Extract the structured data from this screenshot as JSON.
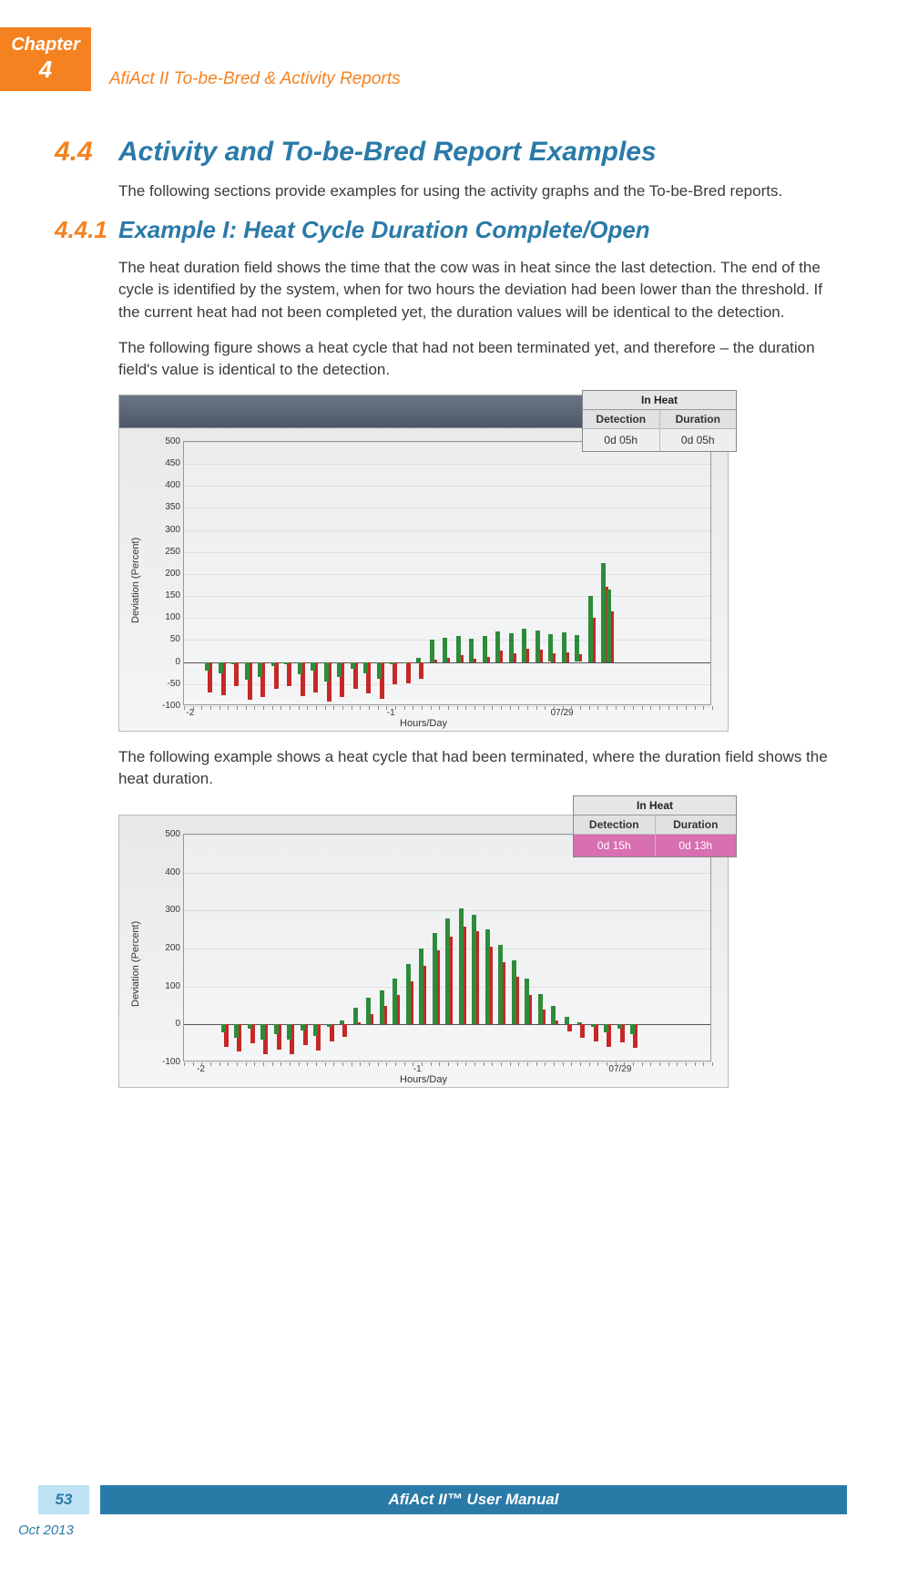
{
  "chapter": {
    "label": "Chapter",
    "number": "4"
  },
  "header_title": "AfiAct II To-be-Bred & Activity Reports",
  "section": {
    "num": "4.4",
    "title": "Activity and To-be-Bred Report Examples",
    "intro": "The following sections provide examples for using the activity graphs and the To-be-Bred reports."
  },
  "subsection": {
    "num": "4.4.1",
    "title": "Example I: Heat Cycle Duration Complete/Open",
    "p1": "The heat duration field shows the time that the cow was in heat since the last detection. The end of the cycle is identified by the system, when for two hours the deviation had been lower than the threshold. If the current heat had not been completed yet, the duration values will be identical to the detection.",
    "p2": "The following figure shows a heat cycle that had not been terminated yet, and therefore – the duration field's value is identical to the detection.",
    "p3": "The following example shows a heat cycle that had been terminated, where the duration field shows the heat duration."
  },
  "chart_common": {
    "y_label": "Deviation  (Percent)",
    "x_label": "Hours/Day",
    "bar_green": "#2e8b3a",
    "bar_red": "#c62828",
    "grid_color": "#c0c0c0",
    "bg_top": "#e8e9eb",
    "bg_bottom": "#f3f4f5"
  },
  "chart1": {
    "ylim": [
      -100,
      500
    ],
    "yticks": [
      -100,
      -50,
      0,
      50,
      100,
      150,
      200,
      250,
      300,
      350,
      400,
      450,
      500
    ],
    "xticks": [
      {
        "pos": 0.03,
        "label": "-2"
      },
      {
        "pos": 0.41,
        "label": "-1"
      },
      {
        "pos": 0.72,
        "label": "07/29"
      }
    ],
    "bars": [
      {
        "x": 0.04,
        "g": -20,
        "r": -70
      },
      {
        "x": 0.065,
        "g": -25,
        "r": -75
      },
      {
        "x": 0.09,
        "g": -5,
        "r": -55
      },
      {
        "x": 0.115,
        "g": -40,
        "r": -85
      },
      {
        "x": 0.14,
        "g": -35,
        "r": -80
      },
      {
        "x": 0.165,
        "g": -10,
        "r": -60
      },
      {
        "x": 0.19,
        "g": -5,
        "r": -55
      },
      {
        "x": 0.215,
        "g": -28,
        "r": -78
      },
      {
        "x": 0.24,
        "g": -20,
        "r": -70
      },
      {
        "x": 0.265,
        "g": -45,
        "r": -90
      },
      {
        "x": 0.29,
        "g": -35,
        "r": -80
      },
      {
        "x": 0.315,
        "g": -15,
        "r": -62
      },
      {
        "x": 0.34,
        "g": -25,
        "r": -72
      },
      {
        "x": 0.365,
        "g": -38,
        "r": -83
      },
      {
        "x": 0.39,
        "g": -5,
        "r": -50
      },
      {
        "x": 0.415,
        "g": 0,
        "r": -48
      },
      {
        "x": 0.44,
        "g": 10,
        "r": -38
      },
      {
        "x": 0.465,
        "g": 50,
        "r": 5
      },
      {
        "x": 0.49,
        "g": 55,
        "r": 10
      },
      {
        "x": 0.515,
        "g": 60,
        "r": 15
      },
      {
        "x": 0.54,
        "g": 52,
        "r": 8
      },
      {
        "x": 0.565,
        "g": 58,
        "r": 12
      },
      {
        "x": 0.59,
        "g": 70,
        "r": 25
      },
      {
        "x": 0.615,
        "g": 65,
        "r": 20
      },
      {
        "x": 0.64,
        "g": 75,
        "r": 30
      },
      {
        "x": 0.665,
        "g": 72,
        "r": 28
      },
      {
        "x": 0.69,
        "g": 64,
        "r": 20
      },
      {
        "x": 0.715,
        "g": 67,
        "r": 22
      },
      {
        "x": 0.74,
        "g": 62,
        "r": 18
      },
      {
        "x": 0.765,
        "g": 150,
        "r": 100
      },
      {
        "x": 0.79,
        "g": 225,
        "r": 170
      },
      {
        "x": 0.8,
        "g": 165,
        "r": 115
      }
    ],
    "inheat": {
      "title": "In Heat",
      "cols": [
        "Detection",
        "Duration"
      ],
      "vals": [
        "0d 05h",
        "0d 05h"
      ],
      "highlight": false
    }
  },
  "chart2": {
    "ylim": [
      -100,
      500
    ],
    "yticks": [
      -100,
      0,
      100,
      200,
      300,
      400,
      500
    ],
    "xticks": [
      {
        "pos": 0.05,
        "label": "-2"
      },
      {
        "pos": 0.46,
        "label": "-1"
      },
      {
        "pos": 0.83,
        "label": "07/29"
      }
    ],
    "bars": [
      {
        "x": 0.07,
        "g": -20,
        "r": -60
      },
      {
        "x": 0.095,
        "g": -35,
        "r": -72
      },
      {
        "x": 0.12,
        "g": -10,
        "r": -50
      },
      {
        "x": 0.145,
        "g": -40,
        "r": -78
      },
      {
        "x": 0.17,
        "g": -25,
        "r": -65
      },
      {
        "x": 0.195,
        "g": -40,
        "r": -78
      },
      {
        "x": 0.22,
        "g": -15,
        "r": -55
      },
      {
        "x": 0.245,
        "g": -30,
        "r": -68
      },
      {
        "x": 0.27,
        "g": -5,
        "r": -45
      },
      {
        "x": 0.295,
        "g": 10,
        "r": -32
      },
      {
        "x": 0.32,
        "g": 45,
        "r": 5
      },
      {
        "x": 0.345,
        "g": 70,
        "r": 28
      },
      {
        "x": 0.37,
        "g": 90,
        "r": 48
      },
      {
        "x": 0.395,
        "g": 120,
        "r": 78
      },
      {
        "x": 0.42,
        "g": 160,
        "r": 115
      },
      {
        "x": 0.445,
        "g": 200,
        "r": 155
      },
      {
        "x": 0.47,
        "g": 240,
        "r": 195
      },
      {
        "x": 0.495,
        "g": 280,
        "r": 232
      },
      {
        "x": 0.52,
        "g": 305,
        "r": 258
      },
      {
        "x": 0.545,
        "g": 290,
        "r": 245
      },
      {
        "x": 0.57,
        "g": 250,
        "r": 205
      },
      {
        "x": 0.595,
        "g": 210,
        "r": 165
      },
      {
        "x": 0.62,
        "g": 170,
        "r": 125
      },
      {
        "x": 0.645,
        "g": 120,
        "r": 78
      },
      {
        "x": 0.67,
        "g": 80,
        "r": 40
      },
      {
        "x": 0.695,
        "g": 50,
        "r": 10
      },
      {
        "x": 0.72,
        "g": 20,
        "r": -18
      },
      {
        "x": 0.745,
        "g": 5,
        "r": -35
      },
      {
        "x": 0.77,
        "g": -5,
        "r": -45
      },
      {
        "x": 0.795,
        "g": -20,
        "r": -58
      },
      {
        "x": 0.82,
        "g": -10,
        "r": -48
      },
      {
        "x": 0.845,
        "g": -25,
        "r": -62
      }
    ],
    "inheat": {
      "title": "In Heat",
      "cols": [
        "Detection",
        "Duration"
      ],
      "vals": [
        "0d 15h",
        "0d 13h"
      ],
      "highlight": true
    }
  },
  "footer": {
    "page": "53",
    "manual": "AfiAct II™ User Manual",
    "date": "Oct 2013"
  }
}
